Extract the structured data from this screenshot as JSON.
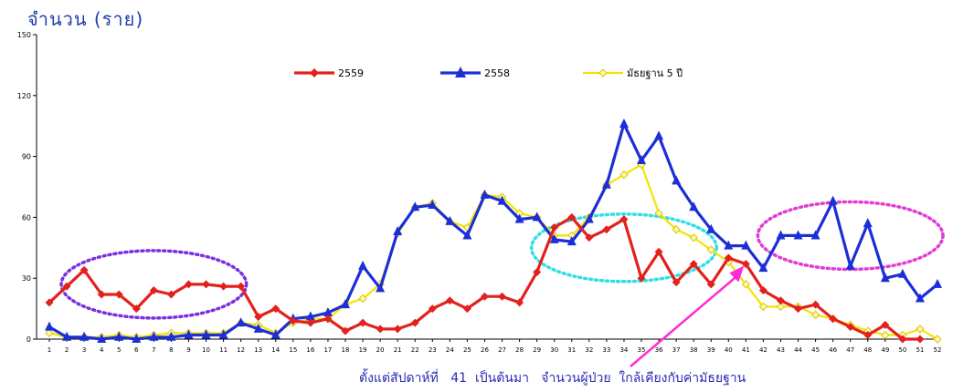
{
  "chart_data": {
    "type": "line",
    "title": "จำนวน (ราย)",
    "ylim": [
      0,
      150
    ],
    "yticks": [
      0,
      30,
      60,
      90,
      120,
      150
    ],
    "grid": false,
    "legend_position": "top-center",
    "x": [
      1,
      2,
      3,
      4,
      5,
      6,
      7,
      8,
      9,
      10,
      11,
      12,
      13,
      14,
      15,
      16,
      17,
      18,
      19,
      20,
      21,
      22,
      23,
      24,
      25,
      26,
      27,
      28,
      29,
      30,
      31,
      32,
      33,
      34,
      35,
      36,
      37,
      38,
      39,
      40,
      41,
      42,
      43,
      44,
      45,
      46,
      47,
      48,
      49,
      50,
      51,
      52
    ],
    "series": [
      {
        "name": "2559",
        "color": "#e3211c",
        "marker": "diamond",
        "values": [
          18,
          26,
          34,
          22,
          22,
          15,
          24,
          22,
          27,
          27,
          26,
          26,
          11,
          15,
          9,
          8,
          10,
          4,
          8,
          5,
          5,
          8,
          15,
          19,
          15,
          21,
          21,
          18,
          33,
          55,
          60,
          50,
          54,
          59,
          30,
          43,
          28,
          37,
          27,
          40,
          37,
          24,
          19,
          15,
          17,
          10,
          6,
          2,
          7,
          0,
          0,
          null
        ]
      },
      {
        "name": "2558",
        "color": "#1c2fd6",
        "marker": "triangle",
        "values": [
          6,
          1,
          1,
          0,
          1,
          0,
          1,
          1,
          2,
          2,
          2,
          8,
          5,
          2,
          10,
          11,
          13,
          17,
          36,
          25,
          53,
          65,
          66,
          58,
          51,
          71,
          68,
          59,
          60,
          49,
          48,
          59,
          76,
          106,
          88,
          100,
          78,
          65,
          54,
          46,
          46,
          35,
          51,
          51,
          51,
          68,
          36,
          57,
          30,
          32,
          20,
          27
        ]
      },
      {
        "name": "มัธยฐาน 5 ปี",
        "color": "#f5e400",
        "marker": "diamond",
        "values": [
          3,
          1,
          1,
          1,
          2,
          1,
          2,
          3,
          3,
          3,
          3,
          8,
          7,
          3,
          8,
          10,
          10,
          17,
          20,
          27,
          52,
          65,
          67,
          58,
          55,
          71,
          70,
          62,
          60,
          51,
          51,
          60,
          76,
          81,
          86,
          62,
          54,
          50,
          44,
          38,
          27,
          16,
          16,
          16,
          12,
          10,
          7,
          4,
          2,
          2,
          5,
          0
        ]
      }
    ],
    "annotations": [
      {
        "text": "ตั้งแต่สัปดาห์ที่   41  เป็นต้นมา   จำนวนผู้ป่วย  ใกล้เคียงกับค่ามัธยฐาน",
        "points_to_week": 41,
        "arrow_color": "#ff2bd6"
      }
    ],
    "highlights": [
      {
        "weeks": [
          2,
          12
        ],
        "center_value": 27,
        "color": "#7b2fe0",
        "style": "dotted-ellipse"
      },
      {
        "weeks": [
          29,
          39
        ],
        "center_value": 45,
        "color": "#2ee0e6",
        "style": "dotted-ellipse"
      },
      {
        "weeks": [
          42,
          52
        ],
        "center_value": 51,
        "color": "#e23bd6",
        "style": "dotted-ellipse"
      }
    ]
  }
}
